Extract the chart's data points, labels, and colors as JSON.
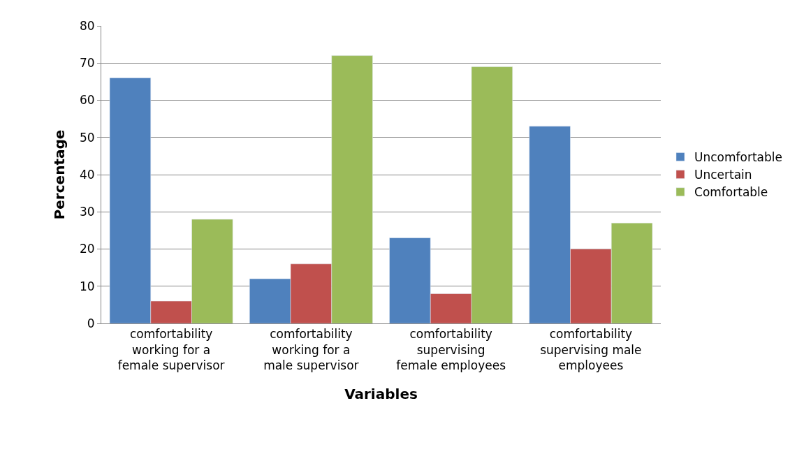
{
  "chart_data": {
    "type": "bar",
    "xlabel": "Variables",
    "ylabel": "Percentage",
    "categories": [
      "comfortability working for a female supervisor",
      "comfortability working for a male supervisor",
      "comfortability supervising female employees",
      "comfortability supervising male employees"
    ],
    "series": [
      {
        "name": "Uncomfortable",
        "color": "#4f81bd",
        "values": [
          66,
          12,
          23,
          53
        ]
      },
      {
        "name": "Uncertain",
        "color": "#c0504d",
        "values": [
          6,
          16,
          8,
          20
        ]
      },
      {
        "name": "Comfortable",
        "color": "#9bbb59",
        "values": [
          28,
          72,
          69,
          27
        ]
      }
    ],
    "ylim": [
      0,
      80
    ],
    "yticks": [
      0,
      10,
      20,
      30,
      40,
      50,
      60,
      70,
      80
    ],
    "grid": "y",
    "legend": "right"
  }
}
